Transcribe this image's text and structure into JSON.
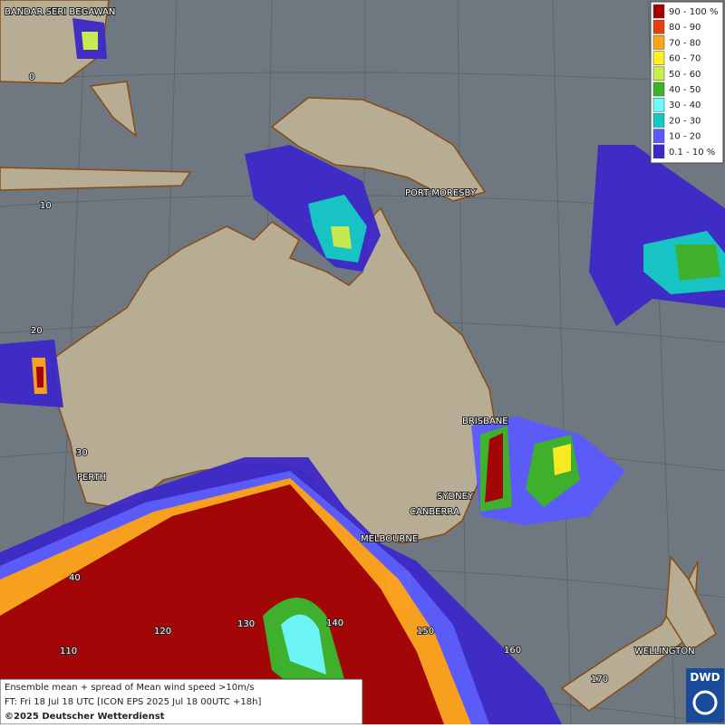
{
  "map": {
    "places": [
      "BANDAR SERI BEGAWAN",
      "PORT MORESBY",
      "BRISBANE",
      "SYDNEY",
      "CANBERRA",
      "MELBOURNE",
      "PERTH",
      "WELLINGTON"
    ],
    "latitude_labels": [
      "0",
      "10",
      "20",
      "30",
      "40"
    ],
    "longitude_labels": [
      "110",
      "120",
      "130",
      "140",
      "150",
      "160",
      "170"
    ],
    "legend": [
      {
        "label": "90 - 100 %",
        "color": "#a50000"
      },
      {
        "label": "80 - 90",
        "color": "#e8400c"
      },
      {
        "label": "70 - 80",
        "color": "#ffa31a"
      },
      {
        "label": "60 - 70",
        "color": "#fff01e"
      },
      {
        "label": "50 - 60",
        "color": "#c8f04c"
      },
      {
        "label": "40 - 50",
        "color": "#3cb428"
      },
      {
        "label": "30 - 40",
        "color": "#6cfafa"
      },
      {
        "label": "20 - 30",
        "color": "#14c8c8"
      },
      {
        "label": "10 - 20",
        "color": "#5a5aff"
      },
      {
        "label": "0.1 - 10 %",
        "color": "#3c28c8"
      }
    ],
    "info": [
      "Ensemble mean + spread of Mean wind speed >10m/s",
      "FT: Fri 18 Jul 18 UTC [ICON EPS 2025 Jul 18 00UTC +18h]",
      "©2025 Deutscher Wetterdienst"
    ],
    "logo": "DWD"
  }
}
